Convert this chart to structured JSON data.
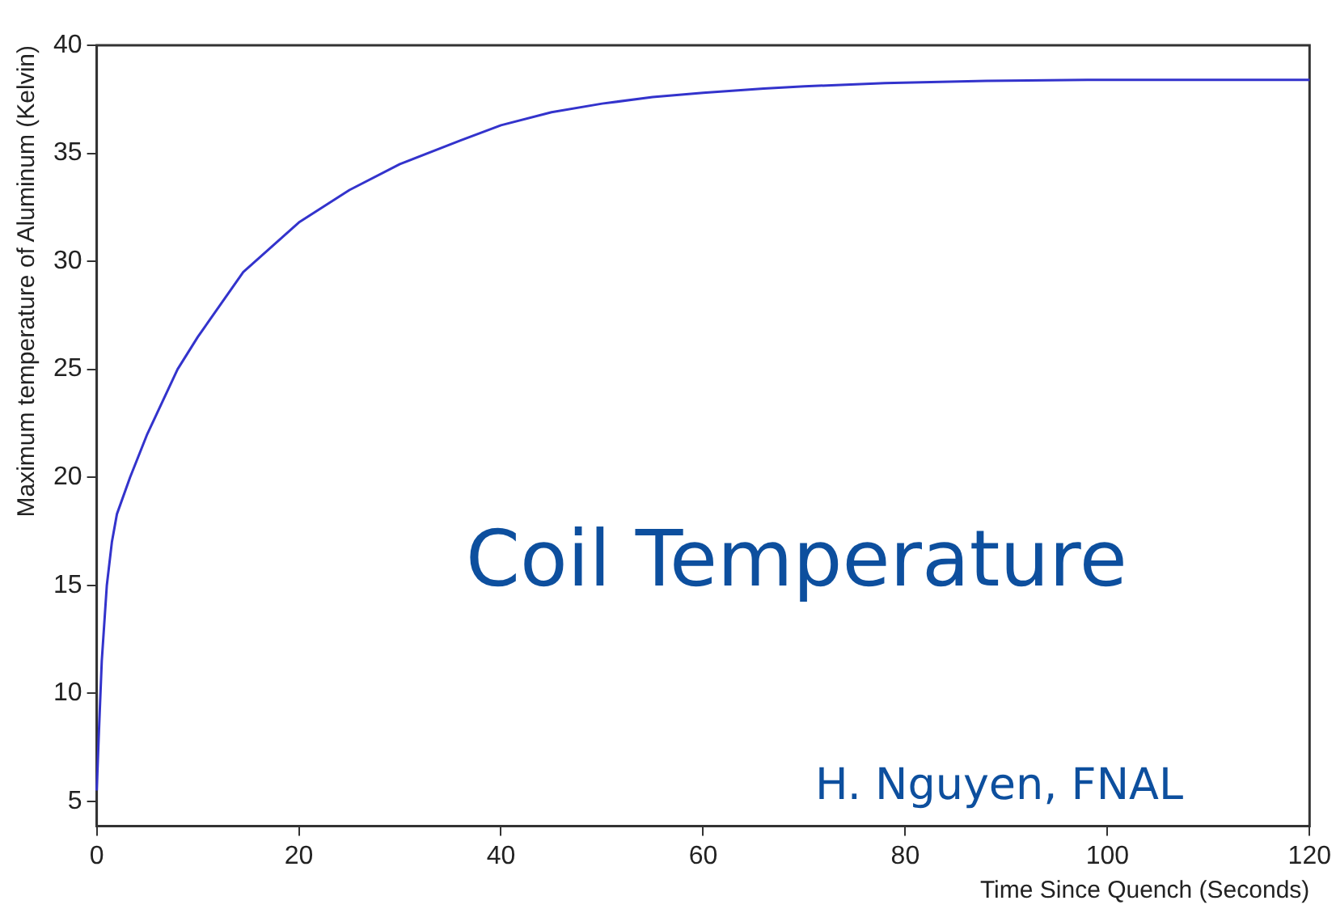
{
  "chart_data": {
    "type": "line",
    "xlabel": "Time Since Quench (Seconds)",
    "ylabel": "Maximum temperature of Aluminum (Kelvin)",
    "annotations": [
      "Coil Temperature",
      "H. Nguyen, FNAL"
    ],
    "x": [
      0,
      0.2,
      0.5,
      1,
      1.5,
      2,
      3.3,
      5,
      8,
      10,
      14.5,
      20,
      25,
      30,
      36,
      40,
      45,
      50,
      55,
      60,
      66,
      70,
      78,
      88,
      98,
      120
    ],
    "series": [
      {
        "color": "#3333cc",
        "values": [
          5.5,
          8,
          11.5,
          15,
          17,
          18.3,
          20,
          22,
          25,
          26.5,
          29.5,
          31.8,
          33.3,
          34.5,
          35.6,
          36.3,
          36.9,
          37.3,
          37.6,
          37.8,
          38,
          38.1,
          38.25,
          38.35,
          38.4,
          38.4
        ]
      }
    ],
    "xlim": [
      0,
      120
    ],
    "xticks": [
      0,
      20,
      40,
      60,
      80,
      100,
      120
    ],
    "ylim": [
      3.85,
      40
    ],
    "yticks": [
      5,
      10,
      15,
      20,
      25,
      30,
      35,
      40
    ],
    "grid": false,
    "legend": false,
    "marker": "none",
    "line_style": "solid"
  }
}
